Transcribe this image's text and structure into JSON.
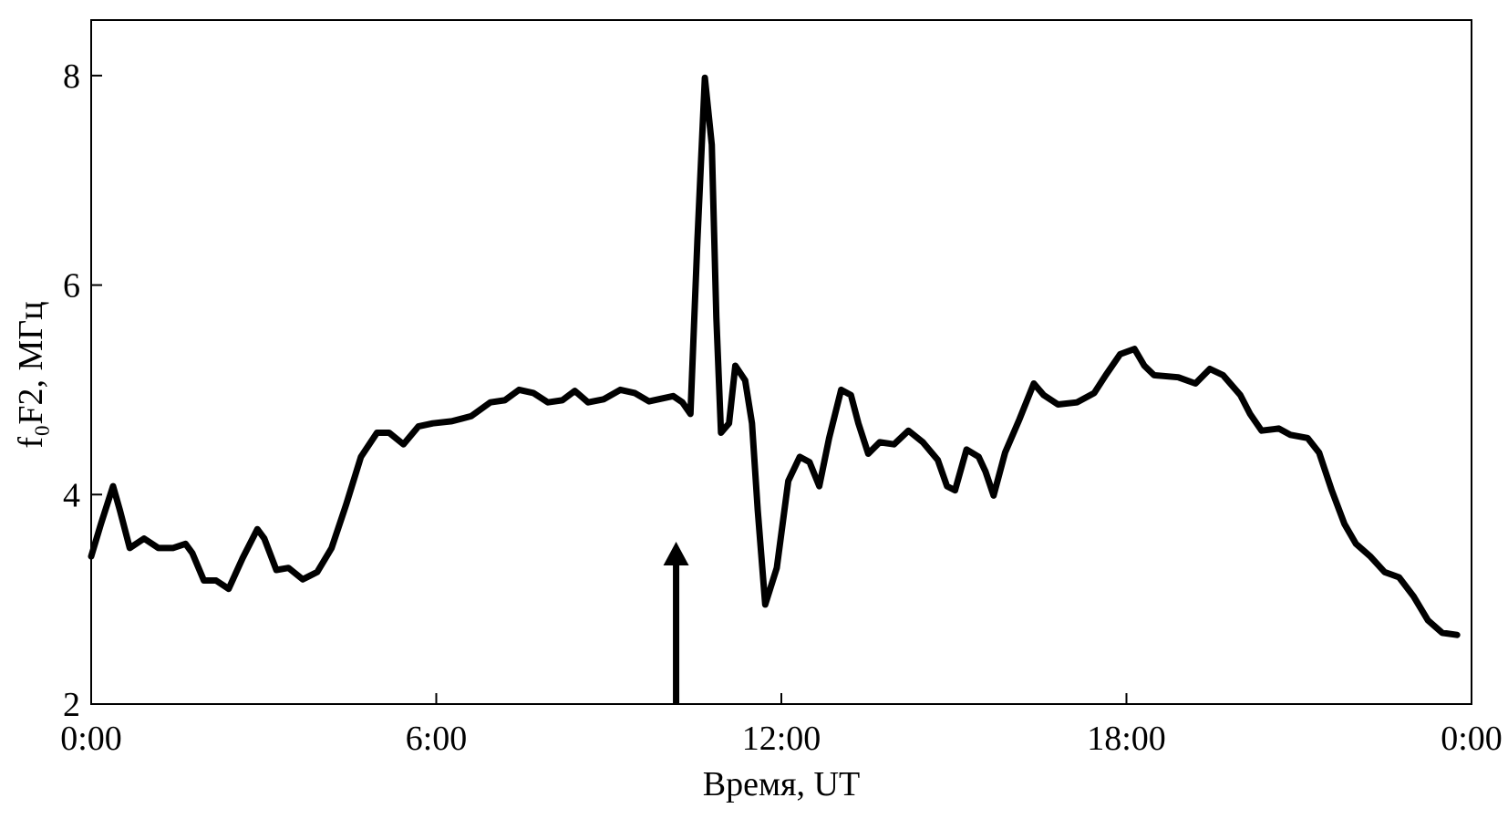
{
  "chart_data": {
    "type": "line",
    "xlabel": "Время, UT",
    "ylabel": "f₀F2, МГц",
    "xlim": [
      0,
      24
    ],
    "xticks": [
      {
        "value": 0,
        "label": "0:00"
      },
      {
        "value": 6,
        "label": "6:00"
      },
      {
        "value": 12,
        "label": "12:00"
      },
      {
        "value": 18,
        "label": "18:00"
      },
      {
        "value": 24,
        "label": "0:00"
      }
    ],
    "ylim": [
      2,
      8.53
    ],
    "yticks": [
      2,
      4,
      6,
      8
    ],
    "grid": false,
    "annotation_arrow": {
      "x": 10.17,
      "y": 3.55
    },
    "series": [
      {
        "color": "#000000",
        "x": [
          0,
          0.17,
          0.38,
          0.5,
          0.67,
          0.92,
          1.17,
          1.42,
          1.64,
          1.76,
          1.96,
          2.17,
          2.39,
          2.63,
          2.89,
          3.01,
          3.22,
          3.43,
          3.68,
          3.93,
          4.18,
          4.43,
          4.69,
          4.97,
          5.18,
          5.43,
          5.69,
          5.94,
          6.27,
          6.61,
          6.94,
          7.19,
          7.44,
          7.69,
          7.94,
          8.19,
          8.41,
          8.64,
          8.91,
          9.2,
          9.45,
          9.7,
          10.12,
          10.28,
          10.42,
          10.54,
          10.67,
          10.79,
          10.87,
          10.95,
          11.09,
          11.2,
          11.37,
          11.49,
          11.59,
          11.72,
          11.92,
          12.12,
          12.32,
          12.49,
          12.66,
          12.83,
          13.04,
          13.21,
          13.34,
          13.51,
          13.71,
          13.96,
          14.21,
          14.46,
          14.72,
          14.88,
          15.02,
          15.22,
          15.43,
          15.55,
          15.69,
          15.89,
          16.14,
          16.39,
          16.56,
          16.81,
          17.14,
          17.44,
          17.64,
          17.89,
          18.14,
          18.31,
          18.48,
          18.9,
          19.2,
          19.45,
          19.68,
          19.98,
          20.15,
          20.35,
          20.65,
          20.85,
          21.15,
          21.35,
          21.57,
          21.79,
          21.99,
          22.24,
          22.49,
          22.74,
          22.99,
          23.24,
          23.49,
          23.75
        ],
        "values": [
          3.41,
          3.72,
          4.08,
          3.85,
          3.49,
          3.58,
          3.49,
          3.49,
          3.53,
          3.44,
          3.18,
          3.18,
          3.1,
          3.39,
          3.67,
          3.58,
          3.28,
          3.3,
          3.19,
          3.26,
          3.49,
          3.9,
          4.36,
          4.59,
          4.59,
          4.48,
          4.65,
          4.68,
          4.7,
          4.75,
          4.88,
          4.9,
          5.0,
          4.97,
          4.88,
          4.9,
          4.99,
          4.88,
          4.91,
          5.0,
          4.97,
          4.89,
          4.94,
          4.88,
          4.77,
          6.42,
          7.98,
          7.34,
          5.69,
          4.59,
          4.68,
          5.23,
          5.09,
          4.68,
          3.85,
          2.95,
          3.3,
          4.13,
          4.36,
          4.31,
          4.08,
          4.54,
          5.0,
          4.95,
          4.68,
          4.39,
          4.5,
          4.48,
          4.61,
          4.5,
          4.33,
          4.08,
          4.04,
          4.43,
          4.36,
          4.22,
          3.99,
          4.4,
          4.72,
          5.06,
          4.95,
          4.86,
          4.88,
          4.97,
          5.14,
          5.34,
          5.39,
          5.23,
          5.14,
          5.12,
          5.06,
          5.2,
          5.14,
          4.95,
          4.77,
          4.61,
          4.63,
          4.57,
          4.54,
          4.4,
          4.04,
          3.72,
          3.53,
          3.41,
          3.26,
          3.21,
          3.03,
          2.8,
          2.68,
          2.66
        ]
      }
    ]
  }
}
